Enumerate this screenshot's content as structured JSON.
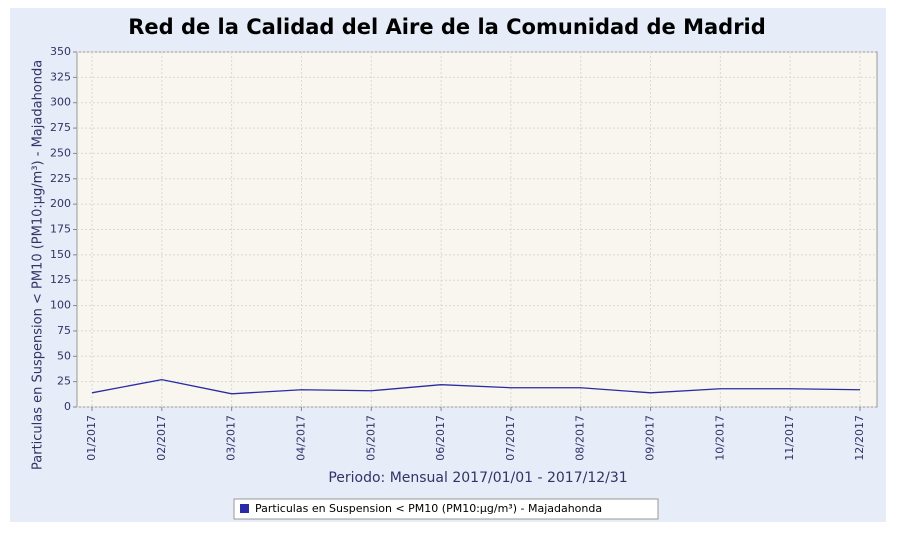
{
  "chart_data": {
    "type": "line",
    "title": "Red de la Calidad del Aire de la Comunidad de Madrid",
    "x_label": "Periodo: Mensual 2017/01/01 - 2017/12/31",
    "y_label": "Particulas en Suspension < PM10 (PM10:µg/m³) - Majadahonda",
    "categories": [
      "01/2017",
      "02/2017",
      "03/2017",
      "04/2017",
      "05/2017",
      "06/2017",
      "07/2017",
      "08/2017",
      "09/2017",
      "10/2017",
      "11/2017",
      "12/2017"
    ],
    "series": [
      {
        "name": "Particulas en Suspension < PM10 (PM10:µg/m³) - Majadahonda",
        "color": "#2b2ba6",
        "values": [
          14,
          27,
          13,
          17,
          16,
          22,
          19,
          19,
          14,
          18,
          18,
          17
        ]
      }
    ],
    "ylim": [
      0,
      350
    ],
    "yticks": [
      0,
      25,
      50,
      75,
      100,
      125,
      150,
      175,
      200,
      225,
      250,
      275,
      300,
      325,
      350
    ],
    "grid": true
  }
}
